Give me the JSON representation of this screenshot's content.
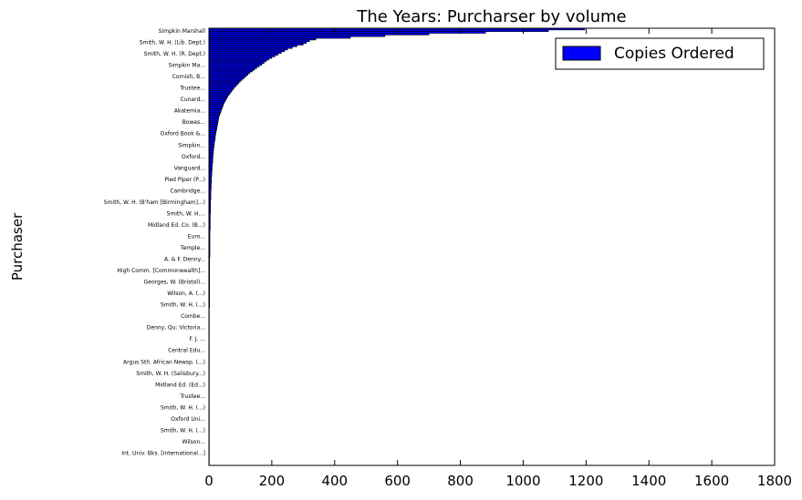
{
  "chart_data": {
    "type": "bar",
    "orientation": "horizontal",
    "title": "The Years: Purcharser by volume",
    "xlabel": "",
    "ylabel": "Purchaser",
    "xlim": [
      0,
      1800
    ],
    "xticks": [
      0,
      200,
      400,
      600,
      800,
      1000,
      1200,
      1400,
      1600,
      1800
    ],
    "legend": {
      "position": "top-right",
      "entries": [
        {
          "label": "Copies Ordered",
          "color": "#0000ff"
        }
      ]
    },
    "bar_color": "#0000ff",
    "grid": false,
    "categories_shown": [
      "Simpkin Marshall",
      "Smith, W. H. (Lib. Dept.)",
      "Smith, W. H. (R. Dept.)",
      "Simpkin Ma...",
      "Cornish, B...",
      "Trustee...",
      "Cunard...",
      "Akatemia...",
      "Bowes...",
      "Oxford Book &...",
      "Simpkin...",
      "Oxford...",
      "Vanguard...",
      "Pied Piper (P...)",
      "Cambridge...",
      "Smith, W. H. (B'ham [Birmingham]...)",
      "Smith, W. H....",
      "Midland Ed. Co. (B...)",
      "Euro...",
      "Temple...",
      "A. & F. Denny...",
      "High Comm. [Commonwealth]...",
      "Georges, W. (Bristol)...",
      "Wilson, A. (...)",
      "Smith, W. H. (...)",
      "Combe...",
      "Denny, Qu: Victoria...",
      "F. J. ...",
      "Central Edu...",
      "Argus Sth. African Newsp. (...)",
      "Smith, W. H. (Salisbury...)",
      "Midland Ed. (Ed...)",
      "Trustee...",
      "Smith, W. H. (...)",
      "Oxford Uni...",
      "Smith, W. H. (...)",
      "Wilson...",
      "Int. Univ. Bks. [International...]"
    ],
    "values": [
      1195,
      1080,
      880,
      700,
      560,
      450,
      340,
      320,
      310,
      300,
      280,
      265,
      250,
      240,
      230,
      220,
      210,
      200,
      190,
      182,
      175,
      168,
      160,
      152,
      145,
      138,
      130,
      124,
      118,
      112,
      106,
      100,
      95,
      90,
      85,
      80,
      76,
      72,
      68,
      64,
      60,
      57,
      54,
      51,
      48,
      46,
      44,
      42,
      40,
      38,
      36,
      34,
      32,
      31,
      30,
      29,
      28,
      27,
      26,
      25,
      24,
      23,
      22,
      21,
      20,
      20,
      19,
      18,
      17,
      17,
      16,
      15,
      15,
      14,
      14,
      13,
      13,
      12,
      12,
      12,
      11,
      11,
      10,
      10,
      10,
      9,
      9,
      9,
      8,
      8,
      8,
      8,
      7,
      7,
      7,
      7,
      6,
      6,
      6,
      6,
      6,
      6,
      5,
      5,
      5,
      5,
      5,
      5,
      5,
      5,
      4,
      4,
      4,
      4,
      4,
      4,
      4,
      4,
      4,
      4,
      3,
      3,
      3,
      3,
      3,
      3,
      3,
      3,
      3,
      3,
      3,
      3,
      3,
      3,
      3,
      3,
      2,
      2,
      2,
      2,
      2,
      2,
      2,
      2,
      2,
      2,
      2,
      2,
      2,
      2,
      2,
      2,
      2,
      2,
      2,
      2,
      2,
      2,
      2,
      2,
      2,
      2,
      2,
      2,
      2,
      2,
      1,
      1,
      1,
      1,
      1,
      1,
      1,
      1,
      1,
      1,
      1,
      1,
      1,
      1,
      1,
      1,
      1,
      1,
      1,
      1,
      1,
      1,
      1,
      1,
      1,
      1,
      1,
      1,
      1,
      1,
      1,
      1,
      1,
      1,
      1,
      1,
      1,
      1,
      1,
      1,
      1,
      1,
      1,
      1,
      1,
      1,
      1,
      1,
      1,
      1,
      1,
      1,
      1,
      1,
      1,
      1,
      1,
      1,
      1,
      1,
      1,
      1,
      1,
      1,
      1,
      1,
      1,
      1,
      1,
      1,
      1,
      1,
      1,
      1,
      1,
      1,
      1,
      1,
      1,
      1,
      1,
      1,
      1,
      1,
      1,
      1,
      1,
      1,
      1,
      1,
      1,
      1,
      1,
      1
    ]
  }
}
